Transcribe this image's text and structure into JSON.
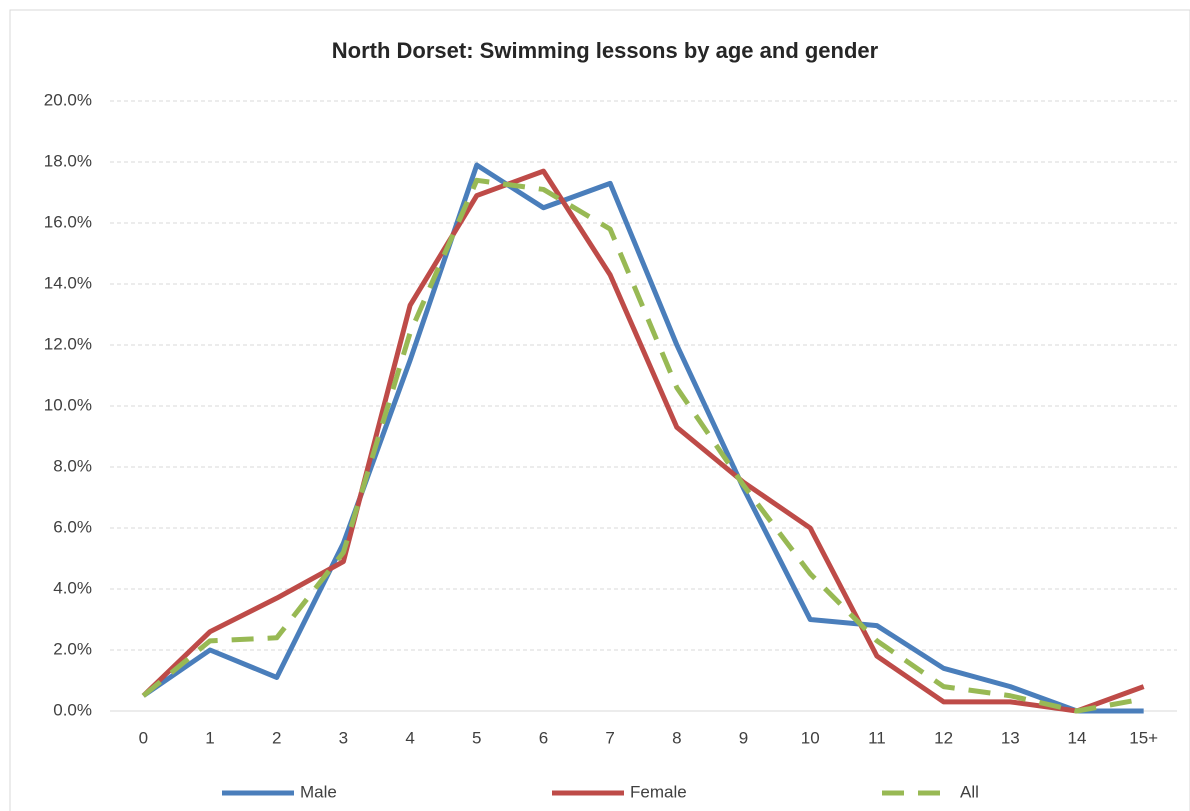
{
  "chart_data": {
    "type": "line",
    "title": "North Dorset: Swimming lessons by age and gender",
    "categories": [
      "0",
      "1",
      "2",
      "3",
      "4",
      "5",
      "6",
      "7",
      "8",
      "9",
      "10",
      "11",
      "12",
      "13",
      "14",
      "15+"
    ],
    "series": [
      {
        "name": "Male",
        "color": "#4a7ebb",
        "dashed": false,
        "values": [
          0.5,
          2.0,
          1.1,
          5.5,
          11.5,
          17.9,
          16.5,
          17.3,
          12.0,
          7.3,
          3.0,
          2.8,
          1.4,
          0.8,
          0.0,
          0.0
        ]
      },
      {
        "name": "Female",
        "color": "#be4b48",
        "dashed": false,
        "values": [
          0.5,
          2.6,
          3.7,
          4.9,
          13.3,
          16.9,
          17.7,
          14.3,
          9.3,
          7.5,
          6.0,
          1.8,
          0.3,
          0.3,
          0.0,
          0.8
        ]
      },
      {
        "name": "All",
        "color": "#98b954",
        "dashed": true,
        "values": [
          0.5,
          2.3,
          2.4,
          5.2,
          12.4,
          17.4,
          17.1,
          15.8,
          10.6,
          7.4,
          4.5,
          2.3,
          0.8,
          0.5,
          0.0,
          0.4
        ]
      }
    ],
    "ylim": [
      0,
      20
    ],
    "yticks": [
      {
        "value": 0,
        "label": "0.0%"
      },
      {
        "value": 2,
        "label": "2.0%"
      },
      {
        "value": 4,
        "label": "4.0%"
      },
      {
        "value": 6,
        "label": "6.0%"
      },
      {
        "value": 8,
        "label": "8.0%"
      },
      {
        "value": 10,
        "label": "10.0%"
      },
      {
        "value": 12,
        "label": "12.0%"
      },
      {
        "value": 14,
        "label": "14.0%"
      },
      {
        "value": 16,
        "label": "16.0%"
      },
      {
        "value": 18,
        "label": "18.0%"
      },
      {
        "value": 20,
        "label": "20.0%"
      }
    ],
    "grid": true,
    "legend": "bottom"
  }
}
